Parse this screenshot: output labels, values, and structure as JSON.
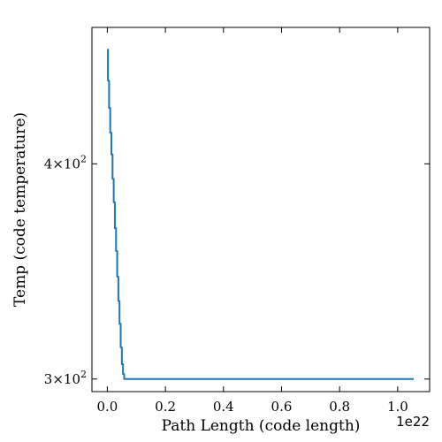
{
  "chart_data": {
    "type": "line",
    "title": "",
    "xlabel": "Path Length  (code length)",
    "ylabel": "Temp  (code temperature)",
    "x_offset_label": "1e22",
    "x_scale_multiplier": 1e+22,
    "xlim": [
      -0.053,
      1.11
    ],
    "ylim": [
      295,
      480
    ],
    "yscale": "log",
    "grid": false,
    "legend": "none",
    "line_color": "#1f77b4",
    "x_ticks": [
      {
        "value": 0.0,
        "label": "0.0"
      },
      {
        "value": 0.2,
        "label": "0.2"
      },
      {
        "value": 0.4,
        "label": "0.4"
      },
      {
        "value": 0.6,
        "label": "0.6"
      },
      {
        "value": 0.8,
        "label": "0.8"
      },
      {
        "value": 1.0,
        "label": "1.0"
      }
    ],
    "y_ticks": [
      {
        "value": 300,
        "label_base": "3×10",
        "label_exp": "2"
      },
      {
        "value": 400,
        "label_base": "4×10",
        "label_exp": "2"
      }
    ],
    "series": [
      {
        "x": [
          0.0,
          0.0,
          0.002,
          0.002,
          0.006,
          0.006,
          0.01,
          0.01,
          0.014,
          0.014,
          0.018,
          0.018,
          0.022,
          0.022,
          0.026,
          0.026,
          0.03,
          0.03,
          0.034,
          0.034,
          0.038,
          0.038,
          0.042,
          0.042,
          0.046,
          0.046,
          0.05,
          0.05,
          0.054,
          0.054,
          0.058,
          0.058,
          0.062,
          0.062,
          0.066,
          0.07,
          0.2,
          0.4,
          0.6,
          0.8,
          1.0,
          1.055
        ],
        "y": [
          466,
          466,
          466,
          447,
          447,
          431,
          431,
          417,
          417,
          405,
          405,
          392,
          392,
          380,
          380,
          367,
          367,
          356,
          356,
          344,
          344,
          333,
          333,
          323,
          323,
          313,
          313,
          306,
          306,
          302,
          302,
          300,
          300,
          300,
          300,
          300,
          300,
          300,
          300,
          300,
          300,
          300
        ]
      }
    ]
  }
}
